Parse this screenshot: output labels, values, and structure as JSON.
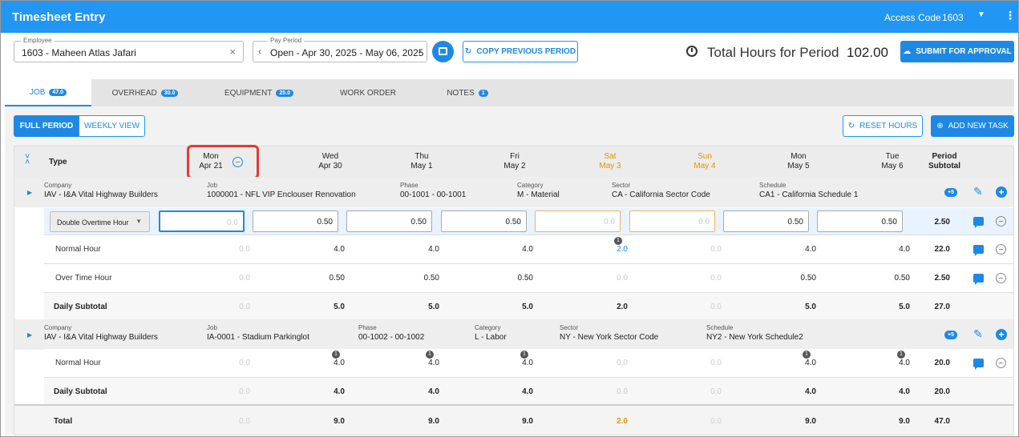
{
  "header": {
    "title": "Timesheet Entry",
    "access_code_label": "Access Code",
    "access_code_value": "1603",
    "caret_icon": "caret-down-icon",
    "menu_icon": "kebab-menu-icon"
  },
  "toolbar": {
    "employee_label": "Employee",
    "employee_value": "1603 - Maheen Atlas Jafari",
    "pay_period_label": "Pay Period",
    "pay_period_value": "Open - Apr 30, 2025 - May 06, 2025",
    "copy_previous_label": "COPY PREVIOUS PERIOD",
    "total_hours_label": "Total Hours for Period",
    "total_hours_value": "102.00",
    "submit_label": "SUBMIT FOR APPROVAL"
  },
  "tabs": [
    {
      "label": "JOB",
      "badge": "47.0",
      "active": true
    },
    {
      "label": "OVERHEAD",
      "badge": "30.0"
    },
    {
      "label": "EQUIPMENT",
      "badge": "25.0"
    },
    {
      "label": "WORK ORDER",
      "badge": ""
    },
    {
      "label": "NOTES",
      "badge": "1"
    }
  ],
  "view": {
    "full_period_label": "FULL PERIOD",
    "weekly_view_label": "WEEKLY VIEW",
    "reset_hours_label": "RESET HOURS",
    "add_task_label": "ADD NEW TASK"
  },
  "grid": {
    "type_label": "Type",
    "period_subtotal_label": [
      "Period",
      "Subtotal"
    ],
    "days": [
      {
        "wd": "Mon",
        "date": "Apr 21"
      },
      {
        "wd": "Wed",
        "date": "Apr 30"
      },
      {
        "wd": "Thu",
        "date": "May 1"
      },
      {
        "wd": "Fri",
        "date": "May 2"
      },
      {
        "wd": "Sat",
        "date": "May 3"
      },
      {
        "wd": "Sun",
        "date": "May 4"
      },
      {
        "wd": "Mon",
        "date": "May 5"
      },
      {
        "wd": "Tue",
        "date": "May 6"
      }
    ],
    "groups": [
      {
        "fields": [
          {
            "cap": "Company",
            "v": "IAV - I&A Vital Highway Builders"
          },
          {
            "cap": "Job",
            "v": "1000001 - NFL VIP Enclouser Renovation"
          },
          {
            "cap": "Phase",
            "v": "00-1001 - 00-1001"
          },
          {
            "cap": "Category",
            "v": "M - Material"
          },
          {
            "cap": "Sector",
            "v": "CA - California Sector Code"
          },
          {
            "cap": "Schedule",
            "v": "CA1 - California Schedule 1"
          }
        ],
        "pill": "+5",
        "edit_row": {
          "type": "Double Overtime Hour",
          "values": [
            "0.0",
            "0.50",
            "0.50",
            "0.50",
            "0.0",
            "0.0",
            "0.50",
            "0.50"
          ],
          "subtotal": "2.50"
        },
        "rows": [
          {
            "type": "Normal Hour",
            "values": [
              "0.0",
              "4.0",
              "4.0",
              "4.0",
              "2.0",
              "0.0",
              "4.0",
              "4.0"
            ],
            "subtotal": "22.0",
            "note_on": "Sat",
            "note_count": "1"
          },
          {
            "type": "Over Time Hour",
            "values": [
              "0.0",
              "0.50",
              "0.50",
              "0.50",
              "0.0",
              "0.0",
              "0.50",
              "0.50"
            ],
            "subtotal": "2.50"
          }
        ],
        "daily_subtotal": {
          "label": "Daily Subtotal",
          "values": [
            "0.0",
            "5.0",
            "5.0",
            "5.0",
            "2.0",
            "0.0",
            "5.0",
            "5.0"
          ],
          "subtotal": "27.0"
        }
      },
      {
        "fields": [
          {
            "cap": "Company",
            "v": "IAV - I&A Vital Highway Builders"
          },
          {
            "cap": "Job",
            "v": "IA-0001 - Stadium Parkinglot"
          },
          {
            "cap": "Phase",
            "v": "00-1002 - 00-1002"
          },
          {
            "cap": "Category",
            "v": "L - Labor"
          },
          {
            "cap": "Sector",
            "v": "NY - New York Sector Code"
          },
          {
            "cap": "Schedule",
            "v": "NY2 - New York Schedule2"
          }
        ],
        "pill": "+5",
        "rows": [
          {
            "type": "Normal Hour",
            "values": [
              "0.0",
              "4.0",
              "4.0",
              "4.0",
              "0.0",
              "0.0",
              "4.0",
              "4.0"
            ],
            "subtotal": "20.0",
            "note_count": "1"
          }
        ],
        "daily_subtotal": {
          "label": "Daily Subtotal",
          "values": [
            "0.0",
            "4.0",
            "4.0",
            "4.0",
            "0.0",
            "0.0",
            "4.0",
            "4.0"
          ],
          "subtotal": "20.0"
        }
      }
    ],
    "total": {
      "label": "Total",
      "values": [
        "0.0",
        "9.0",
        "9.0",
        "9.0",
        "2.0",
        "0.0",
        "9.0",
        "9.0"
      ],
      "subtotal": "47.0"
    }
  },
  "colors": {
    "primary": "#2196f3",
    "accent": "#1e88e5",
    "weekend": "#e69100",
    "highlight": "#e53935"
  }
}
